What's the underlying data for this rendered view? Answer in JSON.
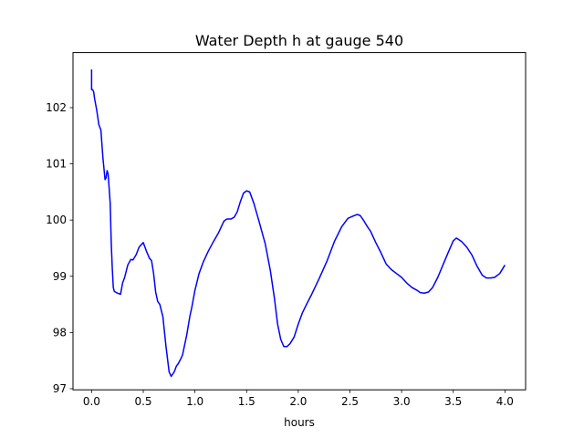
{
  "chart_data": {
    "type": "line",
    "title": "Water Depth h at gauge 540",
    "xlabel": "hours",
    "ylabel": "",
    "xlim": [
      -0.18,
      4.2
    ],
    "ylim": [
      96.98,
      102.98
    ],
    "xticks": [
      0.0,
      0.5,
      1.0,
      1.5,
      2.0,
      2.5,
      3.0,
      3.5,
      4.0
    ],
    "xtick_labels": [
      "0.0",
      "0.5",
      "1.0",
      "1.5",
      "2.0",
      "2.5",
      "3.0",
      "3.5",
      "4.0"
    ],
    "yticks": [
      97,
      98,
      99,
      100,
      101,
      102
    ],
    "ytick_labels": [
      "97",
      "98",
      "99",
      "100",
      "101",
      "102"
    ],
    "grid": false,
    "legend": "none",
    "series": [
      {
        "color": "#0000ff",
        "x": [
          0.0,
          0.0,
          0.01,
          0.02,
          0.03,
          0.05,
          0.07,
          0.09,
          0.11,
          0.13,
          0.14,
          0.15,
          0.16,
          0.18,
          0.19,
          0.2,
          0.21,
          0.22,
          0.23,
          0.25,
          0.28,
          0.3,
          0.32,
          0.35,
          0.38,
          0.4,
          0.43,
          0.46,
          0.5,
          0.53,
          0.56,
          0.58,
          0.6,
          0.62,
          0.64,
          0.66,
          0.69,
          0.72,
          0.75,
          0.77,
          0.8,
          0.82,
          0.84,
          0.86,
          0.88,
          0.92,
          0.95,
          0.97,
          1.0,
          1.04,
          1.08,
          1.13,
          1.18,
          1.23,
          1.28,
          1.31,
          1.35,
          1.38,
          1.41,
          1.44,
          1.47,
          1.5,
          1.53,
          1.57,
          1.62,
          1.68,
          1.73,
          1.77,
          1.8,
          1.83,
          1.86,
          1.89,
          1.92,
          1.96,
          2.0,
          2.04,
          2.08,
          2.13,
          2.2,
          2.28,
          2.35,
          2.42,
          2.48,
          2.53,
          2.57,
          2.6,
          2.63,
          2.67,
          2.7,
          2.75,
          2.8,
          2.85,
          2.9,
          2.95,
          3.0,
          3.05,
          3.1,
          3.15,
          3.18,
          3.22,
          3.26,
          3.3,
          3.35,
          3.4,
          3.45,
          3.5,
          3.53,
          3.58,
          3.63,
          3.68,
          3.73,
          3.78,
          3.82,
          3.86,
          3.9,
          3.95,
          4.0
        ],
        "y": [
          102.68,
          102.32,
          102.32,
          102.28,
          102.15,
          101.95,
          101.7,
          101.6,
          101.1,
          100.72,
          100.75,
          100.88,
          100.82,
          100.3,
          99.6,
          99.15,
          98.8,
          98.73,
          98.72,
          98.7,
          98.68,
          98.88,
          98.98,
          99.2,
          99.3,
          99.29,
          99.38,
          99.52,
          99.6,
          99.45,
          99.32,
          99.28,
          99.05,
          98.72,
          98.55,
          98.5,
          98.28,
          97.75,
          97.3,
          97.22,
          97.3,
          97.4,
          97.45,
          97.52,
          97.6,
          97.95,
          98.28,
          98.45,
          98.75,
          99.05,
          99.25,
          99.45,
          99.62,
          99.78,
          99.98,
          100.02,
          100.02,
          100.05,
          100.15,
          100.33,
          100.48,
          100.52,
          100.5,
          100.3,
          99.98,
          99.58,
          99.1,
          98.6,
          98.15,
          97.88,
          97.75,
          97.75,
          97.8,
          97.92,
          98.15,
          98.35,
          98.5,
          98.68,
          98.95,
          99.28,
          99.62,
          99.88,
          100.03,
          100.07,
          100.1,
          100.08,
          100.0,
          99.88,
          99.8,
          99.6,
          99.42,
          99.22,
          99.12,
          99.05,
          98.98,
          98.88,
          98.8,
          98.75,
          98.71,
          98.7,
          98.72,
          98.8,
          98.98,
          99.2,
          99.42,
          99.63,
          99.68,
          99.62,
          99.52,
          99.38,
          99.18,
          99.02,
          98.97,
          98.97,
          98.98,
          99.05,
          99.2
        ]
      }
    ]
  }
}
